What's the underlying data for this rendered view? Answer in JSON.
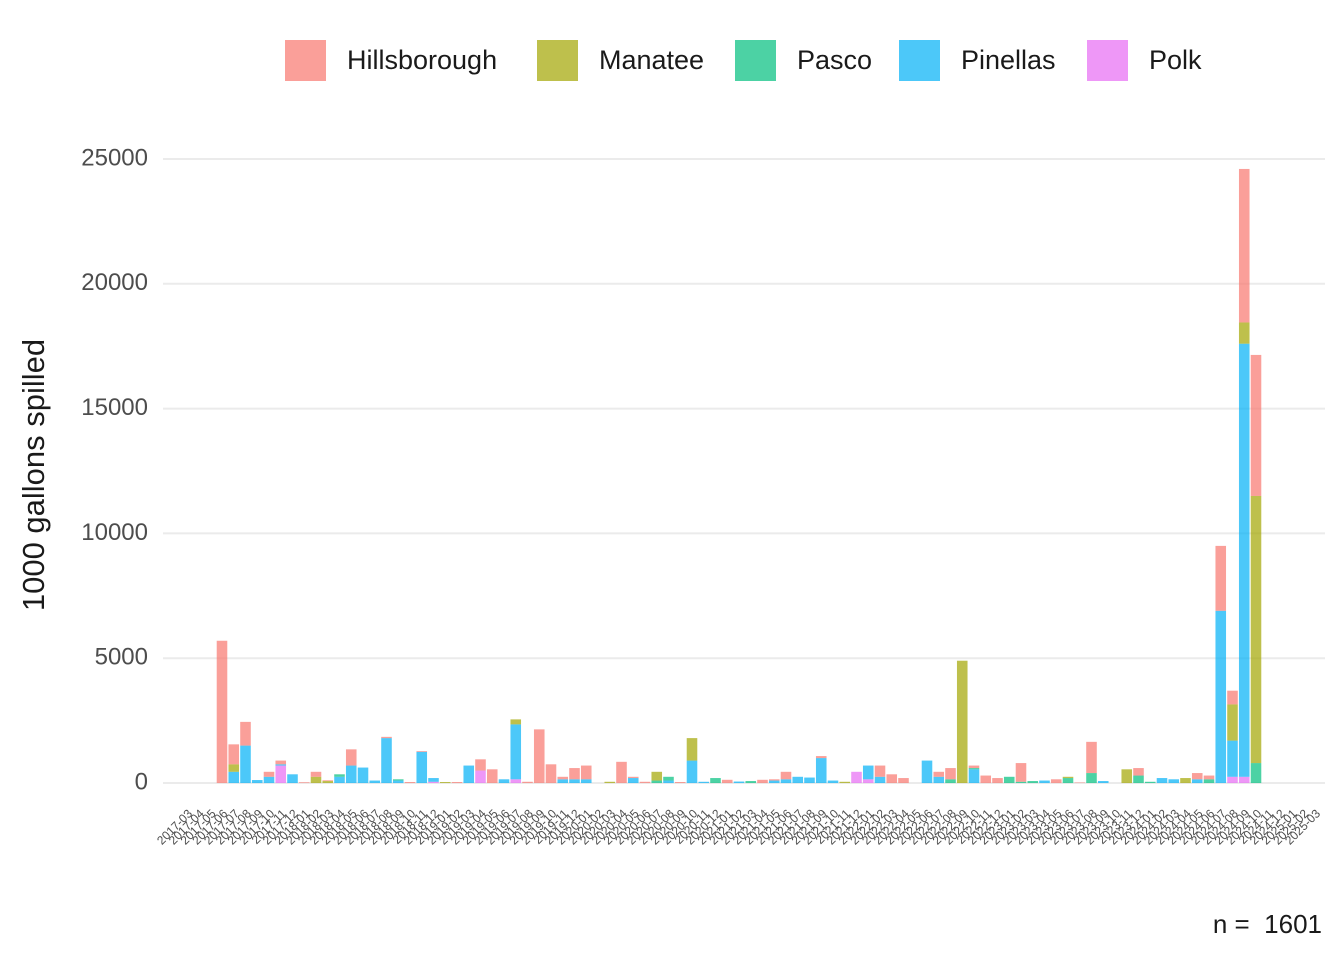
{
  "chart_data": {
    "type": "stacked_bar",
    "y_label": "1000 gallons spilled",
    "caption": "n =  1601",
    "ylim": [
      -1000,
      26000
    ],
    "yticks": [
      0,
      5000,
      10000,
      15000,
      20000,
      25000
    ],
    "grid": true,
    "legend_position": "top",
    "categories": [
      "2017-03",
      "2017-04",
      "2017-05",
      "2017-06",
      "2017-07",
      "2017-08",
      "2017-09",
      "2017-10",
      "2017-11",
      "2017-12",
      "2018-01",
      "2018-02",
      "2018-03",
      "2018-04",
      "2018-05",
      "2018-06",
      "2018-07",
      "2018-08",
      "2018-09",
      "2018-10",
      "2018-11",
      "2018-12",
      "2019-01",
      "2019-02",
      "2019-03",
      "2019-04",
      "2019-05",
      "2019-06",
      "2019-07",
      "2019-08",
      "2019-09",
      "2019-10",
      "2019-11",
      "2019-12",
      "2020-01",
      "2020-02",
      "2020-03",
      "2020-04",
      "2020-05",
      "2020-06",
      "2020-07",
      "2020-08",
      "2020-09",
      "2020-10",
      "2020-11",
      "2020-12",
      "2021-01",
      "2021-02",
      "2021-03",
      "2021-04",
      "2021-05",
      "2021-06",
      "2021-07",
      "2021-08",
      "2021-09",
      "2021-10",
      "2021-11",
      "2021-12",
      "2022-01",
      "2022-02",
      "2022-03",
      "2022-04",
      "2022-05",
      "2022-06",
      "2022-07",
      "2022-08",
      "2022-09",
      "2022-10",
      "2022-11",
      "2022-12",
      "2023-01",
      "2023-02",
      "2023-03",
      "2023-04",
      "2023-05",
      "2023-06",
      "2023-07",
      "2023-08",
      "2023-09",
      "2023-10",
      "2023-11",
      "2023-12",
      "2024-01",
      "2024-02",
      "2024-03",
      "2024-04",
      "2024-05",
      "2024-06",
      "2024-07",
      "2024-08",
      "2024-09",
      "2024-10",
      "2024-11",
      "2024-12",
      "2025-01",
      "2025-02",
      "2025-03"
    ],
    "series": [
      {
        "name": "Hillsborough",
        "color": "#F8766D",
        "values": [
          0,
          0,
          0,
          5700,
          800,
          950,
          0,
          200,
          150,
          0,
          30,
          200,
          30,
          0,
          650,
          0,
          0,
          50,
          0,
          40,
          30,
          0,
          0,
          40,
          0,
          450,
          550,
          0,
          0,
          50,
          2150,
          750,
          100,
          450,
          550,
          0,
          0,
          850,
          50,
          50,
          0,
          0,
          40,
          0,
          0,
          0,
          130,
          0,
          0,
          130,
          50,
          300,
          0,
          0,
          80,
          0,
          0,
          0,
          0,
          450,
          350,
          200,
          0,
          0,
          200,
          450,
          0,
          100,
          300,
          200,
          0,
          750,
          0,
          0,
          150,
          0,
          20,
          1250,
          0,
          0,
          0,
          300,
          0,
          0,
          0,
          0,
          250,
          150,
          2600,
          550,
          6150,
          5650,
          0,
          0,
          0,
          0,
          0
        ]
      },
      {
        "name": "Manatee",
        "color": "#A3A500",
        "values": [
          0,
          0,
          0,
          0,
          300,
          0,
          0,
          0,
          0,
          0,
          0,
          250,
          80,
          0,
          0,
          0,
          0,
          0,
          0,
          0,
          0,
          0,
          40,
          0,
          0,
          0,
          0,
          0,
          200,
          0,
          0,
          0,
          0,
          0,
          0,
          0,
          50,
          0,
          0,
          0,
          350,
          0,
          0,
          900,
          0,
          0,
          0,
          0,
          0,
          0,
          0,
          0,
          0,
          0,
          0,
          0,
          50,
          0,
          0,
          0,
          0,
          0,
          0,
          0,
          0,
          0,
          4900,
          0,
          0,
          0,
          0,
          0,
          0,
          0,
          0,
          50,
          0,
          0,
          0,
          0,
          550,
          0,
          0,
          0,
          0,
          200,
          0,
          0,
          0,
          1450,
          850,
          10700,
          0,
          0,
          0,
          0,
          0
        ]
      },
      {
        "name": "Pasco",
        "color": "#00BF7D",
        "values": [
          0,
          0,
          0,
          0,
          0,
          0,
          0,
          0,
          0,
          0,
          0,
          0,
          0,
          100,
          0,
          0,
          0,
          0,
          50,
          0,
          0,
          0,
          0,
          0,
          0,
          0,
          0,
          0,
          0,
          0,
          0,
          0,
          0,
          0,
          0,
          0,
          0,
          0,
          0,
          0,
          100,
          150,
          0,
          0,
          0,
          200,
          0,
          0,
          80,
          0,
          0,
          0,
          0,
          0,
          0,
          0,
          0,
          0,
          0,
          0,
          0,
          0,
          0,
          0,
          0,
          150,
          0,
          50,
          0,
          0,
          250,
          50,
          80,
          0,
          0,
          200,
          0,
          400,
          0,
          0,
          0,
          300,
          50,
          0,
          0,
          0,
          0,
          150,
          0,
          0,
          0,
          800,
          0,
          0,
          0,
          0,
          0
        ]
      },
      {
        "name": "Pinellas",
        "color": "#00B0F6",
        "values": [
          0,
          0,
          0,
          0,
          450,
          1500,
          120,
          250,
          50,
          350,
          0,
          0,
          0,
          250,
          700,
          620,
          100,
          1800,
          100,
          0,
          1250,
          150,
          0,
          0,
          700,
          0,
          0,
          150,
          2200,
          0,
          0,
          0,
          150,
          150,
          150,
          0,
          0,
          0,
          200,
          0,
          0,
          100,
          0,
          900,
          50,
          0,
          0,
          60,
          0,
          0,
          100,
          150,
          250,
          220,
          1000,
          100,
          0,
          0,
          550,
          250,
          0,
          0,
          0,
          900,
          250,
          0,
          0,
          550,
          0,
          0,
          0,
          0,
          0,
          100,
          0,
          0,
          0,
          0,
          80,
          0,
          0,
          0,
          0,
          200,
          150,
          0,
          150,
          0,
          6900,
          1450,
          17350,
          0,
          0,
          0,
          0,
          0,
          0
        ]
      },
      {
        "name": "Polk",
        "color": "#E76BF3",
        "values": [
          0,
          0,
          0,
          0,
          0,
          0,
          0,
          0,
          700,
          0,
          0,
          0,
          0,
          0,
          0,
          0,
          0,
          0,
          0,
          0,
          0,
          50,
          0,
          0,
          0,
          500,
          0,
          0,
          150,
          0,
          0,
          0,
          0,
          0,
          0,
          0,
          0,
          0,
          0,
          0,
          0,
          0,
          0,
          0,
          0,
          0,
          0,
          0,
          0,
          0,
          0,
          0,
          0,
          0,
          0,
          0,
          0,
          450,
          150,
          0,
          0,
          0,
          0,
          0,
          0,
          0,
          0,
          0,
          0,
          0,
          0,
          0,
          0,
          0,
          0,
          0,
          0,
          0,
          0,
          0,
          0,
          0,
          0,
          0,
          0,
          0,
          0,
          0,
          0,
          250,
          250,
          0,
          0,
          0,
          0,
          0,
          0
        ]
      }
    ]
  }
}
